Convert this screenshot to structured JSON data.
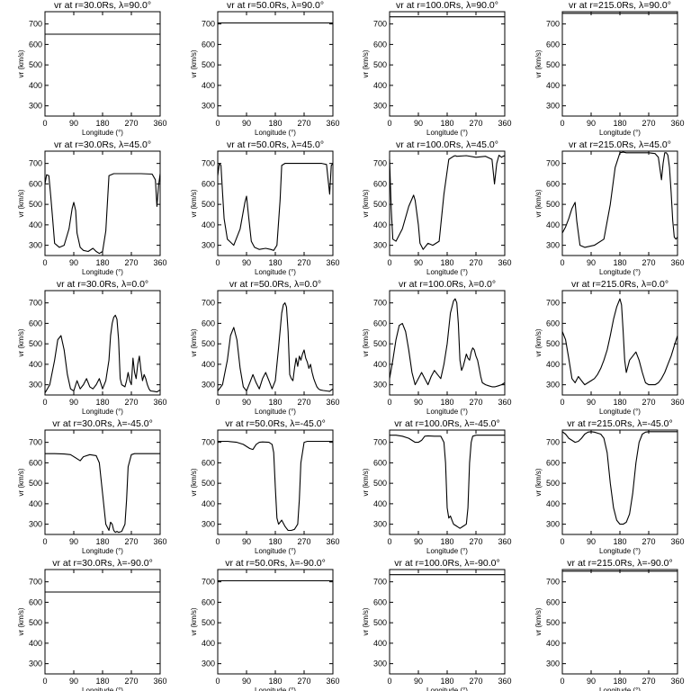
{
  "figure": {
    "xlabel": "Longitude (°)",
    "ylabel": "vr (km/s)",
    "xticks": [
      0,
      90,
      180,
      270,
      360
    ],
    "yticks": [
      300,
      400,
      500,
      600,
      700
    ],
    "xlim": [
      0,
      360
    ],
    "ylim": [
      250,
      760
    ]
  },
  "chart_data": [
    {
      "type": "line",
      "title": "vr at r=30.0Rs, λ=90.0°",
      "x": [
        0,
        360
      ],
      "y": [
        650,
        650
      ]
    },
    {
      "type": "line",
      "title": "vr at r=50.0Rs, λ=90.0°",
      "x": [
        0,
        360
      ],
      "y": [
        705,
        705
      ]
    },
    {
      "type": "line",
      "title": "vr at r=100.0Rs, λ=90.0°",
      "x": [
        0,
        360
      ],
      "y": [
        735,
        735
      ]
    },
    {
      "type": "line",
      "title": "vr at r=215.0Rs, λ=90.0°",
      "x": [
        0,
        360
      ],
      "y": [
        752,
        752
      ]
    },
    {
      "type": "line",
      "title": "vr at r=30.0Rs, λ=45.0°",
      "x": [
        0,
        5,
        12,
        18,
        24,
        30,
        45,
        60,
        75,
        85,
        90,
        96,
        100,
        110,
        120,
        135,
        150,
        160,
        170,
        180,
        190,
        200,
        215,
        240,
        270,
        300,
        335,
        345,
        350,
        355,
        360
      ],
      "y": [
        600,
        645,
        640,
        540,
        430,
        310,
        290,
        300,
        380,
        480,
        510,
        470,
        360,
        290,
        275,
        270,
        285,
        270,
        260,
        270,
        370,
        640,
        650,
        650,
        650,
        650,
        648,
        620,
        490,
        590,
        650
      ]
    },
    {
      "type": "line",
      "title": "vr at r=50.0Rs, λ=45.0°",
      "x": [
        0,
        5,
        10,
        15,
        20,
        30,
        50,
        70,
        85,
        90,
        96,
        105,
        115,
        130,
        150,
        165,
        175,
        185,
        195,
        200,
        210,
        240,
        270,
        300,
        325,
        340,
        350,
        355,
        360
      ],
      "y": [
        640,
        700,
        690,
        560,
        430,
        330,
        300,
        380,
        510,
        540,
        450,
        320,
        290,
        280,
        285,
        280,
        275,
        300,
        520,
        690,
        700,
        700,
        700,
        700,
        700,
        695,
        550,
        690,
        700
      ]
    },
    {
      "type": "line",
      "title": "vr at r=100.0Rs, λ=45.0°",
      "x": [
        0,
        5,
        10,
        20,
        40,
        60,
        75,
        80,
        90,
        95,
        105,
        120,
        135,
        155,
        170,
        185,
        200,
        205,
        210,
        240,
        270,
        300,
        320,
        328,
        335,
        342,
        350,
        355,
        360
      ],
      "y": [
        720,
        480,
        330,
        320,
        380,
        490,
        545,
        520,
        400,
        310,
        280,
        310,
        300,
        320,
        550,
        720,
        735,
        738,
        735,
        738,
        730,
        735,
        720,
        600,
        700,
        740,
        730,
        735,
        738
      ]
    },
    {
      "type": "line",
      "title": "vr at r=215.0Rs, λ=45.0°",
      "x": [
        0,
        10,
        20,
        30,
        40,
        45,
        55,
        70,
        100,
        130,
        150,
        165,
        180,
        190,
        200,
        220,
        240,
        270,
        290,
        300,
        310,
        315,
        320,
        325,
        330,
        335,
        340,
        345,
        350,
        355,
        360
      ],
      "y": [
        360,
        390,
        430,
        480,
        510,
        420,
        300,
        290,
        300,
        330,
        500,
        680,
        752,
        755,
        752,
        752,
        752,
        752,
        748,
        730,
        620,
        700,
        752,
        752,
        740,
        680,
        560,
        420,
        340,
        330,
        340
      ]
    },
    {
      "type": "line",
      "title": "vr at r=30.0Rs, λ=0.0°",
      "x": [
        0,
        15,
        30,
        40,
        50,
        60,
        70,
        80,
        90,
        100,
        110,
        120,
        130,
        140,
        150,
        160,
        170,
        180,
        190,
        200,
        205,
        210,
        215,
        220,
        225,
        230,
        235,
        240,
        250,
        255,
        260,
        265,
        270,
        275,
        280,
        285,
        290,
        295,
        300,
        305,
        310,
        315,
        320,
        325,
        330,
        340,
        350,
        360
      ],
      "y": [
        260,
        300,
        420,
        520,
        540,
        470,
        350,
        280,
        270,
        320,
        280,
        300,
        330,
        290,
        280,
        300,
        330,
        280,
        320,
        420,
        540,
        600,
        630,
        640,
        620,
        520,
        330,
        300,
        290,
        320,
        360,
        320,
        300,
        430,
        360,
        330,
        400,
        440,
        370,
        320,
        350,
        330,
        300,
        280,
        270,
        268,
        265,
        275
      ]
    },
    {
      "type": "line",
      "title": "vr at r=50.0Rs, λ=0.0°",
      "x": [
        0,
        15,
        30,
        40,
        50,
        60,
        70,
        80,
        90,
        100,
        110,
        120,
        130,
        140,
        150,
        160,
        170,
        180,
        190,
        200,
        205,
        210,
        215,
        220,
        225,
        230,
        235,
        240,
        245,
        250,
        255,
        260,
        265,
        270,
        275,
        280,
        285,
        290,
        295,
        300,
        305,
        310,
        315,
        320,
        330,
        340,
        350,
        360
      ],
      "y": [
        270,
        300,
        420,
        540,
        580,
        520,
        380,
        290,
        270,
        310,
        350,
        310,
        280,
        330,
        360,
        320,
        280,
        320,
        480,
        650,
        690,
        700,
        680,
        560,
        350,
        330,
        320,
        380,
        430,
        390,
        440,
        420,
        450,
        470,
        430,
        410,
        380,
        400,
        360,
        330,
        310,
        290,
        280,
        275,
        272,
        270,
        268,
        280
      ]
    },
    {
      "type": "line",
      "title": "vr at r=100.0Rs, λ=0.0°",
      "x": [
        0,
        10,
        20,
        30,
        40,
        50,
        60,
        70,
        80,
        90,
        100,
        110,
        120,
        130,
        140,
        150,
        160,
        170,
        180,
        190,
        200,
        205,
        210,
        215,
        220,
        225,
        230,
        235,
        240,
        245,
        250,
        255,
        260,
        265,
        270,
        275,
        280,
        285,
        290,
        300,
        310,
        320,
        330,
        340,
        350,
        360
      ],
      "y": [
        330,
        420,
        520,
        590,
        600,
        560,
        470,
        360,
        300,
        330,
        360,
        330,
        300,
        340,
        370,
        350,
        330,
        400,
        500,
        650,
        710,
        720,
        700,
        600,
        420,
        370,
        390,
        420,
        450,
        430,
        420,
        460,
        480,
        470,
        440,
        420,
        380,
        340,
        310,
        300,
        295,
        290,
        290,
        295,
        300,
        310
      ]
    },
    {
      "type": "line",
      "title": "vr at r=215.0Rs, λ=0.0°",
      "x": [
        0,
        10,
        20,
        30,
        40,
        50,
        60,
        70,
        80,
        90,
        100,
        110,
        120,
        130,
        140,
        150,
        160,
        170,
        180,
        185,
        190,
        195,
        200,
        210,
        220,
        230,
        240,
        250,
        260,
        270,
        280,
        290,
        300,
        310,
        320,
        330,
        340,
        350,
        360
      ],
      "y": [
        560,
        520,
        430,
        330,
        310,
        340,
        320,
        300,
        310,
        320,
        330,
        350,
        380,
        420,
        470,
        540,
        620,
        680,
        720,
        690,
        560,
        420,
        360,
        420,
        440,
        460,
        420,
        360,
        310,
        300,
        300,
        300,
        310,
        330,
        360,
        400,
        440,
        490,
        540
      ]
    },
    {
      "type": "line",
      "title": "vr at r=30.0Rs, λ=-45.0°",
      "x": [
        0,
        30,
        60,
        80,
        100,
        110,
        120,
        140,
        160,
        170,
        180,
        190,
        200,
        205,
        210,
        215,
        220,
        225,
        230,
        240,
        250,
        255,
        260,
        270,
        280,
        300,
        330,
        360
      ],
      "y": [
        645,
        645,
        643,
        640,
        620,
        610,
        630,
        640,
        635,
        600,
        450,
        300,
        270,
        310,
        300,
        270,
        260,
        265,
        260,
        265,
        300,
        420,
        580,
        640,
        645,
        645,
        645,
        645
      ]
    },
    {
      "type": "line",
      "title": "vr at r=50.0Rs, λ=-45.0°",
      "x": [
        0,
        30,
        60,
        80,
        100,
        110,
        120,
        130,
        140,
        160,
        170,
        175,
        180,
        185,
        190,
        200,
        210,
        215,
        220,
        230,
        240,
        250,
        255,
        260,
        270,
        280,
        300,
        330,
        360
      ],
      "y": [
        705,
        705,
        700,
        690,
        670,
        665,
        690,
        700,
        702,
        700,
        690,
        650,
        480,
        330,
        300,
        320,
        290,
        280,
        270,
        270,
        275,
        300,
        420,
        600,
        700,
        705,
        705,
        705,
        705
      ]
    },
    {
      "type": "line",
      "title": "vr at r=100.0Rs, λ=-45.0°",
      "x": [
        0,
        20,
        40,
        60,
        80,
        90,
        100,
        110,
        120,
        140,
        160,
        170,
        175,
        180,
        185,
        190,
        195,
        200,
        210,
        220,
        230,
        240,
        245,
        250,
        255,
        260,
        270,
        300,
        330,
        360
      ],
      "y": [
        735,
        735,
        730,
        720,
        700,
        700,
        710,
        730,
        732,
        730,
        730,
        700,
        600,
        380,
        330,
        340,
        320,
        300,
        290,
        280,
        290,
        300,
        380,
        600,
        700,
        730,
        735,
        735,
        735,
        735
      ]
    },
    {
      "type": "line",
      "title": "vr at r=215.0Rs, λ=-45.0°",
      "x": [
        0,
        10,
        20,
        30,
        40,
        50,
        60,
        70,
        80,
        90,
        100,
        110,
        120,
        130,
        140,
        150,
        160,
        170,
        180,
        190,
        200,
        210,
        220,
        230,
        240,
        250,
        260,
        270,
        300,
        330,
        360
      ],
      "y": [
        752,
        740,
        720,
        710,
        700,
        705,
        720,
        740,
        750,
        752,
        750,
        745,
        740,
        720,
        650,
        500,
        380,
        320,
        300,
        300,
        310,
        350,
        450,
        600,
        700,
        740,
        750,
        752,
        752,
        752,
        752
      ]
    },
    {
      "type": "line",
      "title": "vr at r=30.0Rs, λ=-90.0°",
      "x": [
        0,
        360
      ],
      "y": [
        650,
        650
      ]
    },
    {
      "type": "line",
      "title": "vr at r=50.0Rs, λ=-90.0°",
      "x": [
        0,
        360
      ],
      "y": [
        705,
        705
      ]
    },
    {
      "type": "line",
      "title": "vr at r=100.0Rs, λ=-90.0°",
      "x": [
        0,
        360
      ],
      "y": [
        735,
        735
      ]
    },
    {
      "type": "line",
      "title": "vr at r=215.0Rs, λ=-90.0°",
      "x": [
        0,
        360
      ],
      "y": [
        752,
        752
      ]
    }
  ]
}
